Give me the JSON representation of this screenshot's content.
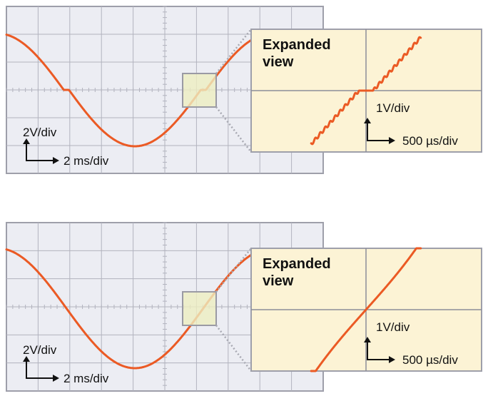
{
  "panels": [
    {
      "id": "top",
      "expanded_title_line1": "Expanded",
      "expanded_title_line2": "view",
      "main_vertical_scale": "2V/div",
      "main_horizontal_scale": "2 ms/div",
      "zoom_vertical_scale": "1V/div",
      "zoom_horizontal_scale": "500 µs/div",
      "crossover_distortion": true
    },
    {
      "id": "bottom",
      "expanded_title_line1": "Expanded",
      "expanded_title_line2": "view",
      "main_vertical_scale": "2V/div",
      "main_horizontal_scale": "2 ms/div",
      "zoom_vertical_scale": "1V/div",
      "zoom_horizontal_scale": "500 µs/div",
      "crossover_distortion": false
    }
  ],
  "colors": {
    "screen_bg": "#ECEDF3",
    "grid": "#B2B3BE",
    "frame": "#9E9FAA",
    "trace": "#EB5A24",
    "zoom_bg": "#FCF3D5",
    "zoom_grid": "#8C8E99",
    "zoom_box_fill": "#EDEDC1",
    "zoom_box_stroke": "#9A9AA4",
    "leader": "#A8A9B2",
    "text": "#111111"
  }
}
